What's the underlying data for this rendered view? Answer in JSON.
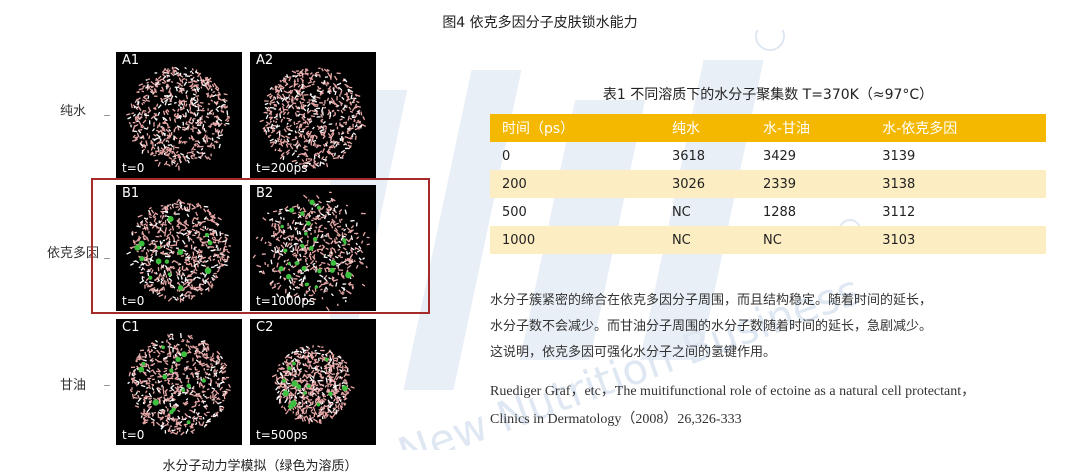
{
  "figure": {
    "title": "图4 依克多因分子皮肤锁水能力",
    "caption": "水分子动力学模拟（绿色为溶质）",
    "rows": [
      {
        "label": "纯水",
        "panels": [
          {
            "id": "A1",
            "time": "t=0",
            "spread": "tight",
            "solute": false
          },
          {
            "id": "A2",
            "time": "t=200ps",
            "spread": "tight",
            "solute": false
          }
        ]
      },
      {
        "label": "依克多因",
        "panels": [
          {
            "id": "B1",
            "time": "t=0",
            "spread": "tight",
            "solute": true
          },
          {
            "id": "B2",
            "time": "t=1000ps",
            "spread": "loose",
            "solute": true
          }
        ]
      },
      {
        "label": "甘油",
        "panels": [
          {
            "id": "C1",
            "time": "t=0",
            "spread": "tight",
            "solute": true
          },
          {
            "id": "C2",
            "time": "t=500ps",
            "spread": "shrunk",
            "solute": true
          }
        ]
      }
    ],
    "colors": {
      "water": "#e9a8a8",
      "solute": "#3fbf3f",
      "highlight": "#a52a2a"
    }
  },
  "table": {
    "title": "表1  不同溶质下的水分子聚集数  T=370K（≈97°C）",
    "header_color": "#f5b800",
    "stripe_color": "#fcedc3",
    "columns": [
      "时间（ps）",
      "纯水",
      "水-甘油",
      "水-依克多因"
    ],
    "rows": [
      [
        "0",
        "3618",
        "3429",
        "3139"
      ],
      [
        "200",
        "3026",
        "2339",
        "3138"
      ],
      [
        "500",
        "NC",
        "1288",
        "3112"
      ],
      [
        "1000",
        "NC",
        "NC",
        "3103"
      ]
    ]
  },
  "description": [
    "水分子簇紧密的缔合在依克多因分子周围，而且结构稳定。随着时间的延长，",
    "水分子数不会减少。而甘油分子周围的水分子数随着时间的延长，急剧减少。",
    "这说明，依克多因可强化水分子之间的氢键作用。"
  ],
  "reference": [
    "Ruediger Graf，etc，The muitifunctional role of ectoine as a natural cell protectant，",
    "Clinics in Dermatology（2008）26,326-333"
  ],
  "watermark": {
    "text": "New Nutrition Business",
    "color": "#e6eef6"
  }
}
